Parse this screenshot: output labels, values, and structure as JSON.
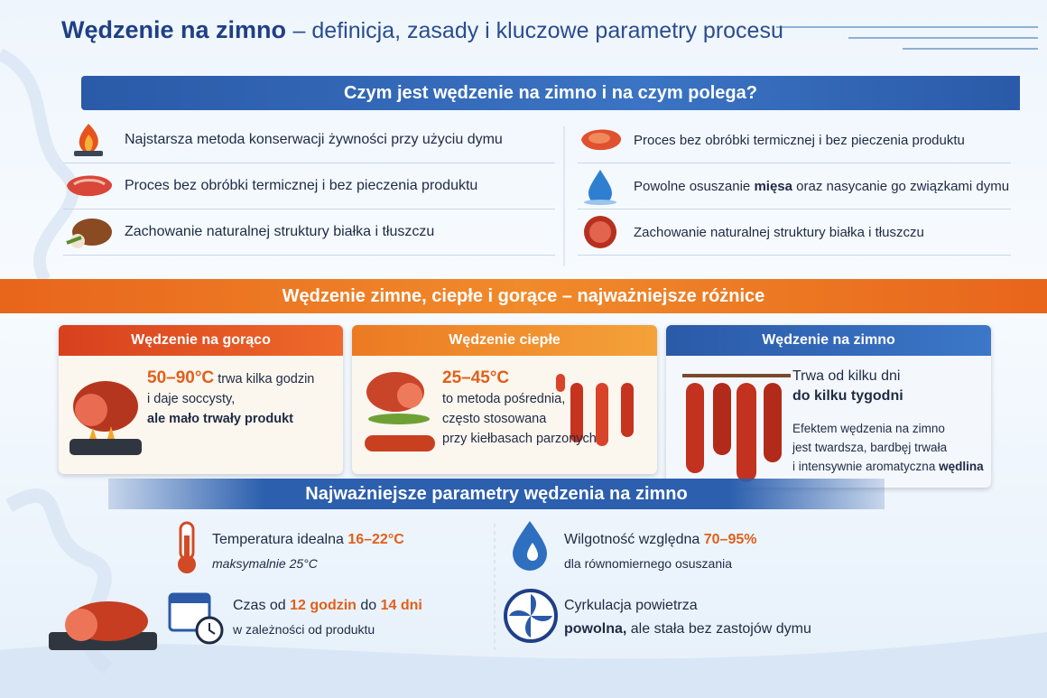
{
  "title": {
    "bold": "Wędzenie na zimno",
    "rest": "– definicja, zasady i kluczowe parametry procesu"
  },
  "section1": {
    "heading": "Czym jest wędzenie na zimno i na czym polega?",
    "left": [
      [
        "Najstarsza metoda konserwacji żywności przy użyciu dymu"
      ],
      [
        "Proces bez obróbki termicznej i bez pieczenia produktu"
      ],
      [
        "Zachowanie naturalnej struktury białka i tłuszczu"
      ]
    ],
    "right": [
      [
        "Proces bez obróbki termicznej i bez pieczenia produktu"
      ],
      [
        "Powolne osuszanie",
        "mięsa",
        "oraz nasycanie go związkami dymu"
      ],
      [
        "Zachowanie naturalnej struktury białka i tłuszczu"
      ]
    ]
  },
  "section2": {
    "heading": "Wędzenie zimne, ciepłe i gorące – najważniejsze różnice",
    "hot": {
      "title": "Wędzenie na gorąco",
      "range": "50–90°C",
      "line1": "trwa kilka godzin",
      "line2": "i daje soccysty,",
      "line3": "ale mało trwały produkt"
    },
    "warm": {
      "title": "Wędzenie ciepłe",
      "range": "25–45°C",
      "line1": "to metoda pośrednia,",
      "line2": "często stosowana",
      "line3": "przy kiełbasach parzonych"
    },
    "cold": {
      "title": "Wędzenie na zimno",
      "line1": "Trwa od kilku dni",
      "line2": "do kilku tygodni",
      "line3": "Efektem wędzenia na zimno",
      "line4": "jest twardsza, bardbęj trwała",
      "line5": "i intensywnie aromatyczna",
      "line5bold": "wędlina"
    }
  },
  "section3": {
    "heading": "Najważniejsze parametry wędzenia na zimno",
    "temperature": {
      "label": "Temperatura idealna",
      "value": "16–22°C",
      "note": "maksymalnie 25°C"
    },
    "time": {
      "label": "Czas od",
      "from": "12 godzin",
      "mid": "do",
      "to": "14 dni",
      "note": "w zależności od produktu"
    },
    "humidity": {
      "label": "Wilgotność względna",
      "value": "70–95%",
      "note": "dla równomiernego osuszania"
    },
    "air": {
      "label": "Cyrkulacja powietrza",
      "bold": "powolna,",
      "note": "ale stała bez zastojów dymu"
    }
  }
}
